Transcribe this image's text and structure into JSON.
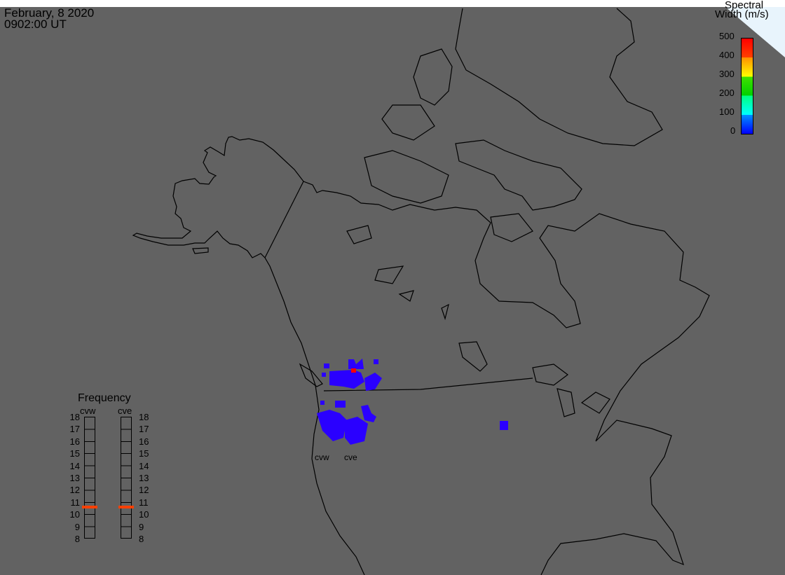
{
  "header": {
    "date": "February, 8 2020",
    "time": "0902:00 UT"
  },
  "colorbar": {
    "title_line1": "Spectral",
    "title_line2": "Width (m/s)",
    "ticks": [
      "500",
      "400",
      "300",
      "200",
      "100",
      "0"
    ],
    "range": [
      0,
      500
    ],
    "colors": [
      "#ff0000",
      "#ff8000",
      "#ffff00",
      "#00d000",
      "#00ffff",
      "#0000ff"
    ]
  },
  "frequency": {
    "title": "Frequency",
    "unit_range": [
      8,
      18
    ],
    "ticks": [
      "18",
      "17",
      "16",
      "15",
      "14",
      "13",
      "12",
      "11",
      "10",
      "9",
      "8"
    ],
    "radars": [
      {
        "name": "cvw",
        "value_mhz": 10.6
      },
      {
        "name": "cve",
        "value_mhz": 10.6
      }
    ],
    "marker_color": "#ff4000"
  },
  "radar_labels": [
    "cvw",
    "cve"
  ],
  "colors": {
    "background": "#626262",
    "scatter": "#2a00ff",
    "high_width": "#ff0000",
    "corner": "#e8f4fc"
  }
}
